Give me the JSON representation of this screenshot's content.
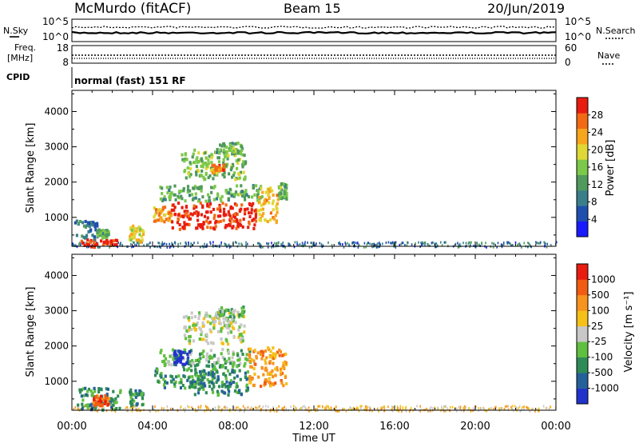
{
  "header": {
    "station": "McMurdo (fitACF)",
    "beam": "Beam 15",
    "date": "20/Jun/2019"
  },
  "top_panels": {
    "noise": {
      "left_label": "N.Sky",
      "right_label": "N.Search",
      "left_ticks": [
        "10^5",
        "10^0"
      ],
      "right_ticks": [
        "10^5",
        "10^0"
      ]
    },
    "freq": {
      "left_label_1": "Freq.",
      "left_label_2": "[MHz]",
      "left_ticks": [
        "18",
        "8"
      ],
      "right_label": "Nave",
      "right_ticks": [
        "60",
        "0"
      ]
    },
    "cpid": {
      "label": "CPID",
      "text": "normal (fast) 151 RF"
    }
  },
  "chart_data": [
    {
      "type": "heatmap",
      "name": "power",
      "ylabel": "Slant Range [km]",
      "xlabel": "",
      "x_ticks": [
        "00:00",
        "04:00",
        "08:00",
        "12:00",
        "16:00",
        "20:00",
        "00:00"
      ],
      "xlim_hours": [
        0,
        24
      ],
      "ylim_km": [
        180,
        4600
      ],
      "y_ticks": [
        1000,
        2000,
        3000,
        4000
      ],
      "colorbar": {
        "label": "Power [dB]",
        "ticks": [
          "28",
          "24",
          "20",
          "16",
          "12",
          "8",
          "4"
        ],
        "range": [
          0,
          32
        ],
        "colors": [
          "#1a1aff",
          "#1f4fae",
          "#3a7e8a",
          "#4f9a5c",
          "#7cc84a",
          "#e0d836",
          "#f7a51d",
          "#f26a14",
          "#e81c0f"
        ]
      },
      "regions": [
        {
          "t0": 0.4,
          "t1": 2.2,
          "r0": 200,
          "r1": 420,
          "level": 30
        },
        {
          "t0": 0.1,
          "t1": 1.2,
          "r0": 420,
          "r1": 950,
          "level": 8
        },
        {
          "t0": 1.2,
          "t1": 1.8,
          "r0": 450,
          "r1": 700,
          "level": 13
        },
        {
          "t0": 2.8,
          "t1": 3.5,
          "r0": 330,
          "r1": 800,
          "level": 20
        },
        {
          "t0": 4.0,
          "t1": 4.9,
          "r0": 900,
          "r1": 1350,
          "level": 24
        },
        {
          "t0": 4.9,
          "t1": 9.1,
          "r0": 700,
          "r1": 1450,
          "level": 30
        },
        {
          "t0": 4.2,
          "t1": 9.4,
          "r0": 1500,
          "r1": 1950,
          "level": 14
        },
        {
          "t0": 9.2,
          "t1": 10.2,
          "r0": 900,
          "r1": 1900,
          "level": 22
        },
        {
          "t0": 10.2,
          "t1": 10.6,
          "r0": 1550,
          "r1": 2000,
          "level": 14
        },
        {
          "t0": 5.4,
          "t1": 8.6,
          "r0": 2100,
          "r1": 2950,
          "level": 15
        },
        {
          "t0": 6.9,
          "t1": 7.5,
          "r0": 2300,
          "r1": 2550,
          "level": 25
        },
        {
          "t0": 7.0,
          "t1": 8.4,
          "r0": 2850,
          "r1": 3150,
          "level": 14
        }
      ],
      "ground_band": {
        "r0": 180,
        "r1": 330,
        "t0": 0,
        "t1": 24,
        "level": 8
      }
    },
    {
      "type": "heatmap",
      "name": "velocity",
      "ylabel": "Slant Range [km]",
      "xlabel": "Time UT",
      "x_ticks": [
        "00:00",
        "04:00",
        "08:00",
        "12:00",
        "16:00",
        "20:00",
        "00:00"
      ],
      "xlim_hours": [
        0,
        24
      ],
      "ylim_km": [
        180,
        4600
      ],
      "y_ticks": [
        1000,
        2000,
        3000,
        4000
      ],
      "colorbar": {
        "label": "Velocity [m s⁻¹]",
        "ticks": [
          "1000",
          "500",
          "100",
          "25",
          "-25",
          "-100",
          "-500",
          "-1000"
        ],
        "colors": [
          "#2233cc",
          "#24619a",
          "#2e8b57",
          "#5fbf3f",
          "#c8c8c8",
          "#f5c018",
          "#f7931e",
          "#f25c12",
          "#e81c0f"
        ]
      },
      "regions": [
        {
          "t0": 0.2,
          "t1": 2.4,
          "r0": 200,
          "r1": 850,
          "level": 2
        },
        {
          "t0": 1.0,
          "t1": 1.8,
          "r0": 350,
          "r1": 650,
          "level": 7
        },
        {
          "t0": 2.8,
          "t1": 3.5,
          "r0": 330,
          "r1": 800,
          "level": 2
        },
        {
          "t0": 4.0,
          "t1": 6.6,
          "r0": 850,
          "r1": 1400,
          "level": 2
        },
        {
          "t0": 6.0,
          "t1": 8.7,
          "r0": 650,
          "r1": 1500,
          "level": 2
        },
        {
          "t0": 4.2,
          "t1": 9.0,
          "r0": 1450,
          "r1": 1950,
          "level": 3
        },
        {
          "t0": 5.0,
          "t1": 5.8,
          "r0": 1500,
          "r1": 1900,
          "level": 0
        },
        {
          "t0": 8.7,
          "t1": 10.6,
          "r0": 900,
          "r1": 2000,
          "level": 6
        },
        {
          "t0": 5.5,
          "t1": 8.5,
          "r0": 2100,
          "r1": 3000,
          "level": 4
        },
        {
          "t0": 7.0,
          "t1": 8.5,
          "r0": 2850,
          "r1": 3150,
          "level": 3
        }
      ],
      "ground_band": {
        "r0": 180,
        "r1": 330,
        "t0": 0,
        "t1": 24,
        "level": 5
      }
    }
  ]
}
